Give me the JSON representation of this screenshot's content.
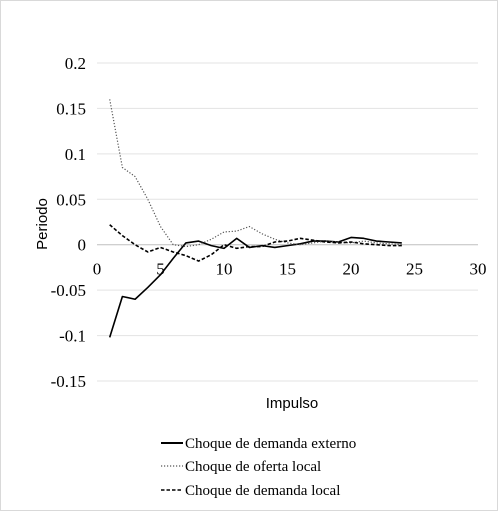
{
  "chart_data": {
    "type": "line",
    "title": "",
    "xlabel": "Impulso",
    "ylabel": "Periodo",
    "xlim": [
      0,
      30
    ],
    "ylim": [
      -0.15,
      0.2
    ],
    "x_ticks": [
      "0",
      "5",
      "10",
      "15",
      "20",
      "25",
      "30"
    ],
    "y_ticks": [
      "0.2",
      "0.15",
      "0.1",
      "0.05",
      "0",
      "-0.05",
      "-0.1",
      "-0.15"
    ],
    "x_tick_values": [
      0,
      5,
      10,
      15,
      20,
      25,
      30
    ],
    "y_tick_values": [
      0.2,
      0.15,
      0.1,
      0.05,
      0,
      -0.05,
      -0.1,
      -0.15
    ],
    "grid": "horizontal",
    "legend_position": "bottom",
    "x": [
      1,
      2,
      3,
      4,
      5,
      6,
      7,
      8,
      9,
      10,
      11,
      12,
      13,
      14,
      15,
      16,
      17,
      18,
      19,
      20,
      21,
      22,
      23,
      24
    ],
    "series": [
      {
        "name": "Choque de demanda externo",
        "style": "solid",
        "color": "#000000",
        "values": [
          -0.102,
          -0.057,
          -0.06,
          -0.047,
          -0.033,
          -0.015,
          0.002,
          0.004,
          -0.001,
          -0.004,
          0.007,
          -0.003,
          -0.001,
          -0.003,
          -0.001,
          0.001,
          0.004,
          0.004,
          0.003,
          0.008,
          0.007,
          0.004,
          0.003,
          0.002
        ]
      },
      {
        "name": "Choque de oferta local",
        "style": "dotted",
        "color": "#555555",
        "values": [
          0.16,
          0.085,
          0.075,
          0.05,
          0.02,
          0.0,
          -0.002,
          0.0,
          0.006,
          0.014,
          0.015,
          0.02,
          0.012,
          0.006,
          0.002,
          0.0,
          0.002,
          0.004,
          0.003,
          0.002,
          0.004,
          0.002,
          0.001,
          0.0
        ]
      },
      {
        "name": "Choque de demanda local",
        "style": "dashed",
        "color": "#000000",
        "values": [
          0.022,
          0.01,
          0.0,
          -0.008,
          -0.003,
          -0.008,
          -0.012,
          -0.018,
          -0.011,
          0.0,
          -0.004,
          -0.002,
          -0.002,
          0.003,
          0.004,
          0.007,
          0.005,
          0.003,
          0.002,
          0.003,
          0.001,
          0.0,
          -0.001,
          -0.001
        ]
      }
    ]
  }
}
